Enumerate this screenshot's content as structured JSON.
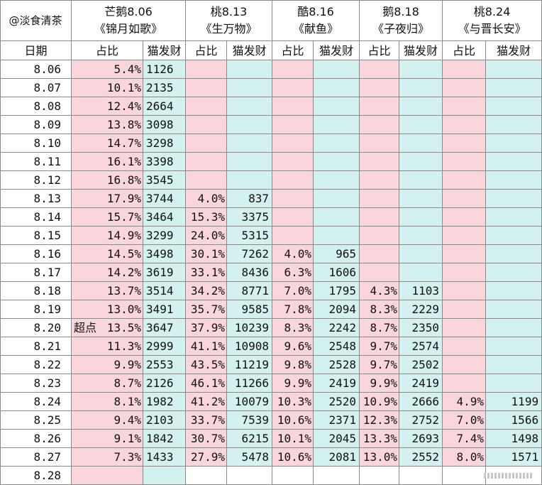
{
  "watermark": "@淡食清茶",
  "date_header": "日期",
  "pct_label": "占比",
  "cat_label": "猫发财",
  "shows": [
    {
      "line1": "芒鹅8.06",
      "line2": "《锦月如歌》"
    },
    {
      "line1": "桃8.13",
      "line2": "《生万物》"
    },
    {
      "line1": "酷8.16",
      "line2": "《献鱼》"
    },
    {
      "line1": "鹅8.18",
      "line2": "《子夜归》"
    },
    {
      "line1": "桃8.24",
      "line2": "《与晋长安》"
    }
  ],
  "rows": [
    {
      "date": "8.06",
      "cells": [
        [
          "5.4%",
          "1126"
        ],
        [
          "",
          ""
        ],
        [
          "",
          ""
        ],
        [
          "",
          ""
        ],
        [
          "",
          ""
        ]
      ]
    },
    {
      "date": "8.07",
      "cells": [
        [
          "10.1%",
          "2135"
        ],
        [
          "",
          ""
        ],
        [
          "",
          ""
        ],
        [
          "",
          ""
        ],
        [
          "",
          ""
        ]
      ]
    },
    {
      "date": "8.08",
      "cells": [
        [
          "12.4%",
          "2664"
        ],
        [
          "",
          ""
        ],
        [
          "",
          ""
        ],
        [
          "",
          ""
        ],
        [
          "",
          ""
        ]
      ]
    },
    {
      "date": "8.09",
      "cells": [
        [
          "13.8%",
          "3098"
        ],
        [
          "",
          ""
        ],
        [
          "",
          ""
        ],
        [
          "",
          ""
        ],
        [
          "",
          ""
        ]
      ]
    },
    {
      "date": "8.10",
      "cells": [
        [
          "14.7%",
          "3298"
        ],
        [
          "",
          ""
        ],
        [
          "",
          ""
        ],
        [
          "",
          ""
        ],
        [
          "",
          ""
        ]
      ]
    },
    {
      "date": "8.11",
      "cells": [
        [
          "16.1%",
          "3398"
        ],
        [
          "",
          ""
        ],
        [
          "",
          ""
        ],
        [
          "",
          ""
        ],
        [
          "",
          ""
        ]
      ]
    },
    {
      "date": "8.12",
      "cells": [
        [
          "16.8%",
          "3545"
        ],
        [
          "",
          ""
        ],
        [
          "",
          ""
        ],
        [
          "",
          ""
        ],
        [
          "",
          ""
        ]
      ]
    },
    {
      "date": "8.13",
      "cells": [
        [
          "17.9%",
          "3744"
        ],
        [
          "4.0%",
          "837"
        ],
        [
          "",
          ""
        ],
        [
          "",
          ""
        ],
        [
          "",
          ""
        ]
      ]
    },
    {
      "date": "8.14",
      "cells": [
        [
          "15.7%",
          "3464"
        ],
        [
          "15.3%",
          "3375"
        ],
        [
          "",
          ""
        ],
        [
          "",
          ""
        ],
        [
          "",
          ""
        ]
      ]
    },
    {
      "date": "8.15",
      "cells": [
        [
          "14.9%",
          "3299"
        ],
        [
          "24.0%",
          "5315"
        ],
        [
          "",
          ""
        ],
        [
          "",
          ""
        ],
        [
          "",
          ""
        ]
      ]
    },
    {
      "date": "8.16",
      "cells": [
        [
          "14.5%",
          "3498"
        ],
        [
          "30.1%",
          "7262"
        ],
        [
          "4.0%",
          "965"
        ],
        [
          "",
          ""
        ],
        [
          "",
          ""
        ]
      ]
    },
    {
      "date": "8.17",
      "cells": [
        [
          "14.2%",
          "3619"
        ],
        [
          "33.1%",
          "8436"
        ],
        [
          "6.3%",
          "1606"
        ],
        [
          "",
          ""
        ],
        [
          "",
          ""
        ]
      ]
    },
    {
      "date": "8.18",
      "cells": [
        [
          "13.7%",
          "3514"
        ],
        [
          "34.2%",
          "8771"
        ],
        [
          "7.0%",
          "1795"
        ],
        [
          "4.3%",
          "1103"
        ],
        [
          "",
          ""
        ]
      ]
    },
    {
      "date": "8.19",
      "cells": [
        [
          "13.0%",
          "3491"
        ],
        [
          "35.7%",
          "9585"
        ],
        [
          "7.8%",
          "2094"
        ],
        [
          "8.3%",
          "2229"
        ],
        [
          "",
          ""
        ]
      ]
    },
    {
      "date": "8.20",
      "note": "超点",
      "cells": [
        [
          "13.5%",
          "3647"
        ],
        [
          "37.9%",
          "10239"
        ],
        [
          "8.3%",
          "2242"
        ],
        [
          "8.7%",
          "2350"
        ],
        [
          "",
          ""
        ]
      ]
    },
    {
      "date": "8.21",
      "cells": [
        [
          "11.3%",
          "2999"
        ],
        [
          "41.1%",
          "10908"
        ],
        [
          "9.6%",
          "2548"
        ],
        [
          "9.7%",
          "2574"
        ],
        [
          "",
          ""
        ]
      ]
    },
    {
      "date": "8.22",
      "cells": [
        [
          "9.9%",
          "2553"
        ],
        [
          "43.5%",
          "11219"
        ],
        [
          "9.8%",
          "2528"
        ],
        [
          "9.7%",
          "2502"
        ],
        [
          "",
          ""
        ]
      ]
    },
    {
      "date": "8.23",
      "cells": [
        [
          "8.7%",
          "2126"
        ],
        [
          "46.1%",
          "11266"
        ],
        [
          "9.9%",
          "2419"
        ],
        [
          "9.9%",
          "2419"
        ],
        [
          "",
          ""
        ]
      ]
    },
    {
      "date": "8.24",
      "cells": [
        [
          "8.1%",
          "1982"
        ],
        [
          "41.2%",
          "10079"
        ],
        [
          "10.3%",
          "2520"
        ],
        [
          "10.9%",
          "2666"
        ],
        [
          "4.9%",
          "1199"
        ]
      ]
    },
    {
      "date": "8.25",
      "cells": [
        [
          "9.4%",
          "2103"
        ],
        [
          "33.7%",
          "7539"
        ],
        [
          "10.6%",
          "2371"
        ],
        [
          "12.3%",
          "2752"
        ],
        [
          "7.0%",
          "1566"
        ]
      ]
    },
    {
      "date": "8.26",
      "cells": [
        [
          "9.1%",
          "1842"
        ],
        [
          "30.7%",
          "6215"
        ],
        [
          "10.1%",
          "2045"
        ],
        [
          "13.3%",
          "2693"
        ],
        [
          "7.4%",
          "1498"
        ]
      ]
    },
    {
      "date": "8.27",
      "cells": [
        [
          "7.3%",
          "1433"
        ],
        [
          "27.9%",
          "5478"
        ],
        [
          "10.6%",
          "2081"
        ],
        [
          "13.0%",
          "2552"
        ],
        [
          "8.0%",
          "1571"
        ]
      ]
    },
    {
      "date": "8.28",
      "cells": [
        [
          "",
          ""
        ],
        [
          "",
          ""
        ],
        [
          "",
          ""
        ],
        [
          "",
          ""
        ],
        [
          "",
          ""
        ]
      ]
    }
  ],
  "colors": {
    "pct_bg": "#fad6dc",
    "cat_bg": "#d3f1ef"
  }
}
